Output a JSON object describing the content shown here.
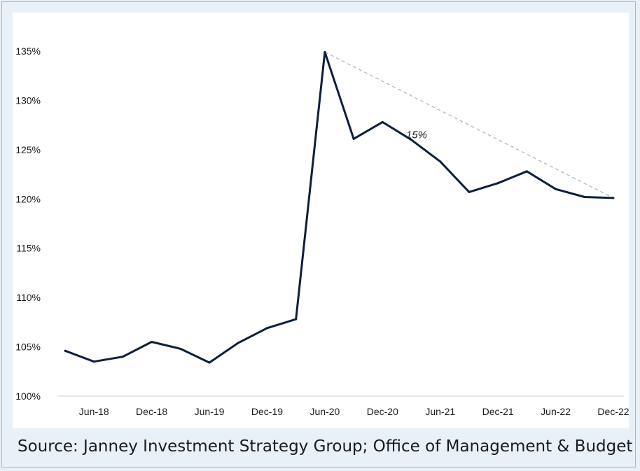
{
  "chart_data": {
    "type": "line",
    "title": "",
    "xlabel": "",
    "ylabel": "",
    "categories": [
      "Mar-18",
      "Jun-18",
      "Sep-18",
      "Dec-18",
      "Mar-19",
      "Jun-19",
      "Sep-19",
      "Dec-19",
      "Mar-20",
      "Jun-20",
      "Sep-20",
      "Dec-20",
      "Mar-21",
      "Jun-21",
      "Sep-21",
      "Dec-21",
      "Mar-22",
      "Jun-22",
      "Sep-22",
      "Dec-22"
    ],
    "x_tick_labels": [
      "Jun-18",
      "Dec-18",
      "Jun-19",
      "Dec-19",
      "Jun-20",
      "Dec-20",
      "Jun-21",
      "Dec-21",
      "Jun-22",
      "Dec-22"
    ],
    "y_tick_labels": [
      "100%",
      "105%",
      "110%",
      "115%",
      "120%",
      "125%",
      "130%",
      "135%"
    ],
    "ylim": [
      100,
      135
    ],
    "y_ticks": [
      100,
      105,
      110,
      115,
      120,
      125,
      130,
      135
    ],
    "grid": false,
    "legend": "none",
    "series": [
      {
        "values": [
          104.6,
          103.5,
          104.0,
          105.5,
          104.8,
          103.4,
          105.4,
          106.9,
          107.8,
          134.9,
          126.1,
          127.8,
          126.0,
          123.8,
          120.7,
          121.6,
          122.8,
          121.0,
          120.2,
          120.1
        ],
        "color": "#0d1f3c"
      }
    ],
    "trend_line": {
      "from": "Jun-20",
      "to": "Dec-22",
      "start_value": 134.9,
      "end_value": 120.1,
      "style": "dashed",
      "color": "#a8b8cc"
    },
    "annotations": [
      {
        "text": "-15%",
        "at_category": "Mar-21",
        "at_value": 126.5
      }
    ]
  },
  "source": "Source: Janney Investment Strategy Group; Office of Management & Budget"
}
